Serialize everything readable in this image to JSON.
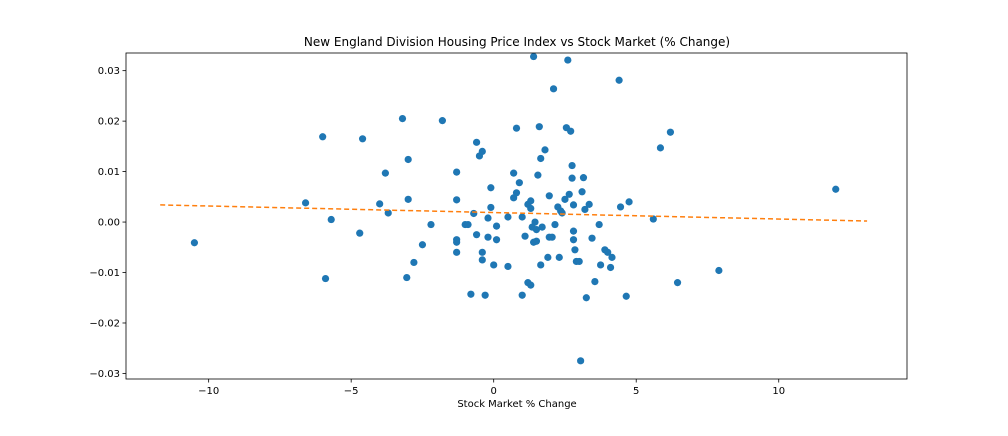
{
  "chart_data": {
    "type": "scatter",
    "title": "New England Division Housing Price Index vs Stock Market (% Change)",
    "xlabel": "Stock Market % Change",
    "ylabel": "",
    "xlim": [
      -12.9,
      14.5
    ],
    "ylim": [
      -0.0311,
      0.0335
    ],
    "x_ticks": [
      -10,
      -5,
      0,
      5,
      10
    ],
    "y_ticks": [
      -0.03,
      -0.02,
      -0.01,
      0.0,
      0.01,
      0.02,
      0.03
    ],
    "x_tick_labels": [
      "−10",
      "−5",
      "0",
      "5",
      "10"
    ],
    "y_tick_labels": [
      "−0.03",
      "−0.02",
      "−0.01",
      "0.00",
      "0.01",
      "0.02",
      "0.03"
    ],
    "grid": false,
    "series": [
      {
        "kind": "scatter",
        "color": "#1f77b4",
        "points": [
          [
            -10.5,
            -0.0041
          ],
          [
            -6.6,
            0.0038
          ],
          [
            -6.0,
            0.0169
          ],
          [
            -5.9,
            -0.0112
          ],
          [
            -5.7,
            0.0005
          ],
          [
            -4.6,
            0.0165
          ],
          [
            -4.7,
            -0.0022
          ],
          [
            -4.0,
            0.0036
          ],
          [
            -3.8,
            0.0097
          ],
          [
            -3.7,
            0.0018
          ],
          [
            -3.2,
            0.0205
          ],
          [
            -3.0,
            0.0045
          ],
          [
            -3.0,
            0.0124
          ],
          [
            -3.05,
            -0.011
          ],
          [
            -2.8,
            -0.008
          ],
          [
            -2.5,
            -0.0045
          ],
          [
            -2.2,
            -0.0005
          ],
          [
            -1.8,
            0.0201
          ],
          [
            -1.3,
            0.0099
          ],
          [
            -1.3,
            0.0044
          ],
          [
            -1.3,
            -0.0035
          ],
          [
            -1.3,
            -0.004
          ],
          [
            -1.3,
            -0.006
          ],
          [
            -1.0,
            -0.0005
          ],
          [
            -0.9,
            -0.0005
          ],
          [
            -0.8,
            -0.0143
          ],
          [
            -0.7,
            0.0017
          ],
          [
            -0.6,
            0.0158
          ],
          [
            -0.6,
            -0.0025
          ],
          [
            -0.5,
            0.0131
          ],
          [
            -0.4,
            0.014
          ],
          [
            -0.4,
            -0.006
          ],
          [
            -0.4,
            -0.0075
          ],
          [
            -0.3,
            -0.0145
          ],
          [
            -0.2,
            0.0008
          ],
          [
            -0.2,
            -0.003
          ],
          [
            -0.1,
            0.0068
          ],
          [
            -0.1,
            0.0029
          ],
          [
            0.0,
            -0.0085
          ],
          [
            0.1,
            -0.0008
          ],
          [
            0.1,
            -0.0035
          ],
          [
            0.5,
            -0.0088
          ],
          [
            0.5,
            0.001
          ],
          [
            0.7,
            0.0097
          ],
          [
            0.7,
            0.0048
          ],
          [
            0.8,
            0.0186
          ],
          [
            0.8,
            0.0058
          ],
          [
            0.9,
            0.0078
          ],
          [
            1.0,
            -0.0145
          ],
          [
            1.0,
            0.001
          ],
          [
            1.1,
            -0.0028
          ],
          [
            1.2,
            -0.012
          ],
          [
            1.2,
            0.0035
          ],
          [
            1.3,
            -0.0125
          ],
          [
            1.3,
            0.0042
          ],
          [
            1.3,
            0.0027
          ],
          [
            1.35,
            -0.001
          ],
          [
            1.4,
            0.0328
          ],
          [
            1.4,
            -0.004
          ],
          [
            1.45,
            0.0
          ],
          [
            1.5,
            -0.0038
          ],
          [
            1.5,
            -0.0015
          ],
          [
            1.55,
            0.0093
          ],
          [
            1.6,
            0.0189
          ],
          [
            1.65,
            0.0126
          ],
          [
            1.65,
            -0.0085
          ],
          [
            1.7,
            -0.001
          ],
          [
            1.8,
            0.0143
          ],
          [
            1.9,
            -0.007
          ],
          [
            1.95,
            0.0052
          ],
          [
            1.95,
            -0.003
          ],
          [
            2.05,
            -0.003
          ],
          [
            2.1,
            0.0264
          ],
          [
            2.15,
            -0.0005
          ],
          [
            2.25,
            0.003
          ],
          [
            2.3,
            -0.007
          ],
          [
            2.35,
            0.0022
          ],
          [
            2.4,
            0.0018
          ],
          [
            2.5,
            0.0045
          ],
          [
            2.55,
            0.0187
          ],
          [
            2.6,
            0.0321
          ],
          [
            2.65,
            0.0055
          ],
          [
            2.7,
            0.018
          ],
          [
            2.75,
            0.0112
          ],
          [
            2.75,
            0.0087
          ],
          [
            2.8,
            0.0034
          ],
          [
            2.8,
            -0.0018
          ],
          [
            2.8,
            -0.0035
          ],
          [
            2.85,
            -0.0055
          ],
          [
            2.9,
            -0.0078
          ],
          [
            3.0,
            -0.0078
          ],
          [
            3.05,
            -0.0275
          ],
          [
            3.1,
            0.006
          ],
          [
            3.15,
            0.0088
          ],
          [
            3.2,
            0.0025
          ],
          [
            3.25,
            -0.015
          ],
          [
            3.35,
            0.0035
          ],
          [
            3.45,
            -0.0032
          ],
          [
            3.55,
            -0.0118
          ],
          [
            3.7,
            -0.0005
          ],
          [
            3.75,
            -0.0085
          ],
          [
            3.9,
            -0.0055
          ],
          [
            4.0,
            -0.006
          ],
          [
            4.1,
            -0.009
          ],
          [
            4.15,
            -0.007
          ],
          [
            4.4,
            0.0281
          ],
          [
            4.45,
            0.003
          ],
          [
            4.65,
            -0.0147
          ],
          [
            4.75,
            0.004
          ],
          [
            5.6,
            0.0006
          ],
          [
            5.85,
            0.0147
          ],
          [
            6.2,
            0.0178
          ],
          [
            6.45,
            -0.012
          ],
          [
            7.9,
            -0.0096
          ],
          [
            12.0,
            0.0065
          ]
        ]
      },
      {
        "kind": "trend-line",
        "color": "#ff7f0e",
        "style": "dashed",
        "x": [
          -11.7,
          13.1
        ],
        "y": [
          0.0034,
          0.0002
        ]
      }
    ]
  }
}
